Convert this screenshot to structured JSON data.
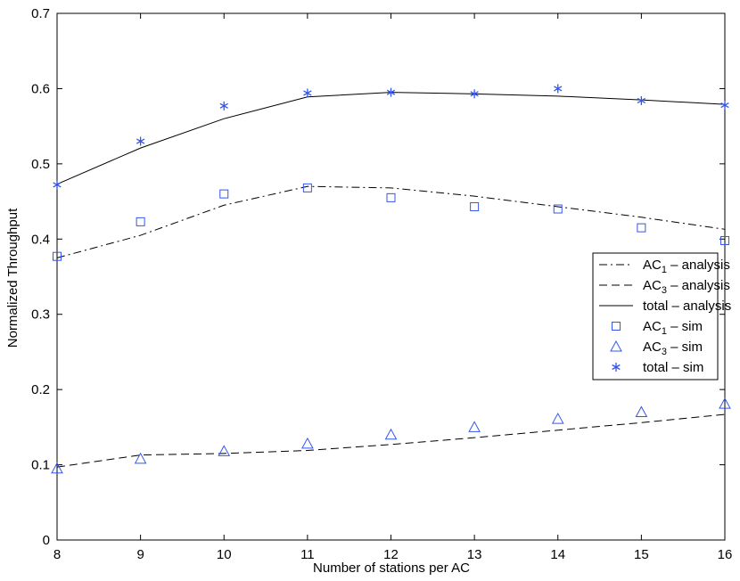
{
  "chart_data": {
    "type": "line",
    "xlabel": "Number of stations per AC",
    "ylabel": "Normalized Throughput",
    "xlim": [
      8,
      16
    ],
    "ylim": [
      0,
      0.7
    ],
    "x_ticks": [
      "8",
      "9",
      "10",
      "11",
      "12",
      "13",
      "14",
      "15",
      "16"
    ],
    "y_ticks": [
      "0",
      "0.1",
      "0.2",
      "0.3",
      "0.4",
      "0.5",
      "0.6",
      "0.7"
    ],
    "grid": false,
    "legend_position": "right",
    "line_color": "#000000",
    "marker_color": "#3355ee",
    "series": [
      {
        "name_main": "AC",
        "name_sub": "1",
        "name_rest": " – analysis",
        "kind": "line",
        "style": "dashdot",
        "x": [
          8,
          9,
          10,
          11,
          12,
          13,
          14,
          15,
          16
        ],
        "y": [
          0.375,
          0.405,
          0.445,
          0.47,
          0.468,
          0.457,
          0.443,
          0.429,
          0.413
        ]
      },
      {
        "name_main": "AC",
        "name_sub": "3",
        "name_rest": " – analysis",
        "kind": "line",
        "style": "dashed",
        "x": [
          8,
          9,
          10,
          11,
          12,
          13,
          14,
          15,
          16
        ],
        "y": [
          0.097,
          0.113,
          0.115,
          0.119,
          0.127,
          0.136,
          0.146,
          0.156,
          0.167
        ]
      },
      {
        "name_main": "total – analysis",
        "name_sub": "",
        "name_rest": "",
        "kind": "line",
        "style": "solid",
        "x": [
          8,
          9,
          10,
          11,
          12,
          13,
          14,
          15,
          16
        ],
        "y": [
          0.473,
          0.521,
          0.56,
          0.589,
          0.595,
          0.593,
          0.59,
          0.585,
          0.579
        ]
      },
      {
        "name_main": "AC",
        "name_sub": "1",
        "name_rest": " – sim",
        "kind": "marker",
        "marker": "square",
        "x": [
          8,
          9,
          10,
          11,
          12,
          13,
          14,
          15,
          16
        ],
        "y": [
          0.377,
          0.423,
          0.46,
          0.468,
          0.455,
          0.443,
          0.44,
          0.415,
          0.398
        ]
      },
      {
        "name_main": "AC",
        "name_sub": "3",
        "name_rest": " – sim",
        "kind": "marker",
        "marker": "triangle",
        "x": [
          8,
          9,
          10,
          11,
          12,
          13,
          14,
          15,
          16
        ],
        "y": [
          0.095,
          0.108,
          0.118,
          0.128,
          0.14,
          0.15,
          0.161,
          0.17,
          0.181
        ]
      },
      {
        "name_main": "total – sim",
        "name_sub": "",
        "name_rest": "",
        "kind": "marker",
        "marker": "star",
        "x": [
          8,
          9,
          10,
          11,
          12,
          13,
          14,
          15,
          16
        ],
        "y": [
          0.472,
          0.53,
          0.577,
          0.594,
          0.595,
          0.593,
          0.6,
          0.584,
          0.578
        ]
      }
    ]
  }
}
